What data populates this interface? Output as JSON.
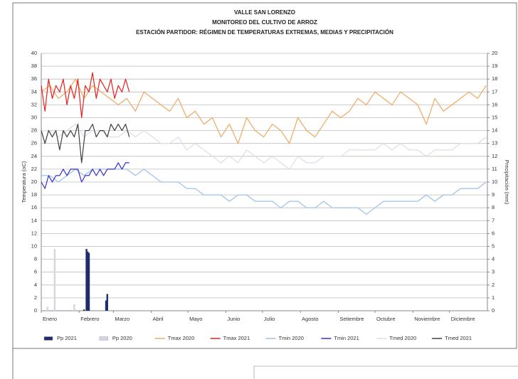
{
  "chart_data": {
    "type": "line",
    "title": [
      "VALLE SAN LORENZO",
      "MONITOREO DEL CULTIVO DE ARROZ",
      "ESTACIÓN PARTIDOR: RÉGIMEN DE TEMPERATURAS EXTREMAS, MEDIAS Y PRECIPITACIÓN"
    ],
    "ylabel": "Temperatura (oC)",
    "y2label": "Precipitación (mm)",
    "xlim": [
      1,
      366
    ],
    "xticks": [
      {
        "value": 1,
        "label": "Enero"
      },
      {
        "value": 32,
        "label": "Febrero"
      },
      {
        "value": 60,
        "label": "Marzo"
      },
      {
        "value": 91,
        "label": "Abril"
      },
      {
        "value": 121,
        "label": "Mayo"
      },
      {
        "value": 152,
        "label": "Junio"
      },
      {
        "value": 182,
        "label": "Julio"
      },
      {
        "value": 213,
        "label": "Agosto"
      },
      {
        "value": 244,
        "label": "Setiembre"
      },
      {
        "value": 274,
        "label": "Octubre"
      },
      {
        "value": 305,
        "label": "Noviembre"
      },
      {
        "value": 335,
        "label": "Diciembre"
      }
    ],
    "ylim": [
      0,
      40
    ],
    "yticks": [
      0,
      2,
      4,
      6,
      8,
      10,
      12,
      14,
      16,
      18,
      20,
      22,
      24,
      26,
      28,
      30,
      32,
      34,
      36,
      38,
      40
    ],
    "y2lim": [
      0,
      20
    ],
    "y2ticks": [
      0,
      1,
      2,
      3,
      4,
      5,
      6,
      7,
      8,
      9,
      10,
      11,
      12,
      13,
      14,
      15,
      16,
      17,
      18,
      19,
      20
    ],
    "grid": true,
    "legend": "bottom",
    "series": [
      {
        "name": "Pp 2021",
        "type": "bar",
        "axis": "y2",
        "color": "#1f2d6b",
        "x": [
          36,
          38,
          39,
          40,
          54,
          55
        ],
        "values": [
          0.1,
          4.8,
          4.6,
          4.5,
          0.8,
          1.3
        ]
      },
      {
        "name": "Pp 2020",
        "type": "bar",
        "axis": "y2",
        "color": "#d4d4e4",
        "x": [
          6,
          12,
          28
        ],
        "values": [
          0.3,
          4.8,
          0.5
        ]
      },
      {
        "name": "Tmax 2020",
        "type": "line",
        "color": "#f0a860",
        "x": [
          1,
          8,
          15,
          22,
          29,
          36,
          43,
          50,
          57,
          64,
          71,
          78,
          85,
          92,
          99,
          106,
          113,
          120,
          127,
          134,
          141,
          148,
          155,
          162,
          169,
          176,
          183,
          190,
          197,
          204,
          211,
          218,
          225,
          232,
          239,
          246,
          253,
          260,
          267,
          274,
          281,
          288,
          295,
          302,
          309,
          316,
          323,
          330,
          337,
          344,
          351,
          358,
          365
        ],
        "values": [
          34,
          35,
          33,
          34,
          36,
          33,
          35,
          34,
          33,
          32,
          33,
          31,
          34,
          33,
          32,
          31,
          33,
          30,
          31,
          29,
          30,
          27,
          29,
          26,
          30,
          28,
          27,
          29,
          28,
          26,
          30,
          28,
          27,
          29,
          31,
          30,
          31,
          33,
          32,
          34,
          33,
          32,
          34,
          33,
          32,
          29,
          33,
          31,
          32,
          33,
          34,
          33,
          35
        ]
      },
      {
        "name": "Tmax 2021",
        "type": "line",
        "color": "#e8201c",
        "x": [
          1,
          4,
          7,
          10,
          13,
          16,
          19,
          22,
          25,
          28,
          31,
          34,
          37,
          40,
          43,
          46,
          49,
          52,
          55,
          58,
          61,
          64,
          67,
          70,
          73
        ],
        "values": [
          35,
          31,
          36,
          33,
          35,
          34,
          36,
          32,
          35,
          33,
          36,
          30,
          35,
          34,
          37,
          33,
          36,
          35,
          34,
          36,
          33,
          35,
          34,
          36,
          34
        ]
      },
      {
        "name": "Tmin 2020",
        "type": "line",
        "color": "#9cc0e8",
        "x": [
          1,
          8,
          15,
          22,
          29,
          36,
          43,
          50,
          57,
          64,
          71,
          78,
          85,
          92,
          99,
          106,
          113,
          120,
          127,
          134,
          141,
          148,
          155,
          162,
          169,
          176,
          183,
          190,
          197,
          204,
          211,
          218,
          225,
          232,
          239,
          246,
          253,
          260,
          267,
          274,
          281,
          288,
          295,
          302,
          309,
          316,
          323,
          330,
          337,
          344,
          351,
          358,
          365
        ],
        "values": [
          21,
          21,
          20,
          21,
          22,
          21,
          22,
          22,
          22,
          22,
          22,
          21,
          22,
          21,
          20,
          20,
          20,
          19,
          19,
          18,
          18,
          18,
          17,
          18,
          18,
          17,
          17,
          17,
          16,
          17,
          17,
          16,
          16,
          17,
          16,
          16,
          16,
          16,
          15,
          16,
          17,
          17,
          17,
          17,
          17,
          18,
          17,
          18,
          18,
          19,
          19,
          19,
          20
        ]
      },
      {
        "name": "Tmin 2021",
        "type": "line",
        "color": "#3a2fd0",
        "x": [
          1,
          4,
          7,
          10,
          13,
          16,
          19,
          22,
          25,
          28,
          31,
          34,
          37,
          40,
          43,
          46,
          49,
          52,
          55,
          58,
          61,
          64,
          67,
          70,
          73
        ],
        "values": [
          20,
          19,
          21,
          20,
          21,
          21,
          22,
          21,
          22,
          22,
          22,
          20,
          21,
          21,
          22,
          21,
          22,
          21,
          22,
          22,
          22,
          23,
          22,
          23,
          23
        ]
      },
      {
        "name": "Tmed 2020",
        "type": "line",
        "color": "#dcdcea",
        "x": [
          1,
          8,
          15,
          22,
          29,
          36,
          43,
          50,
          57,
          64,
          71,
          78,
          85,
          92,
          99,
          106,
          113,
          120,
          127,
          134,
          141,
          148,
          155,
          162,
          169,
          176,
          183,
          190,
          197,
          204,
          211,
          218,
          225,
          232,
          239,
          246,
          253,
          260,
          267,
          274,
          281,
          288,
          295,
          302,
          309,
          316,
          323,
          330,
          337,
          344,
          351,
          358,
          365
        ],
        "values": [
          28,
          28,
          27,
          28,
          29,
          27,
          28,
          28,
          27,
          27,
          28,
          27,
          28,
          27,
          26,
          26,
          27,
          25,
          26,
          25,
          24,
          23,
          24,
          23,
          25,
          24,
          23,
          24,
          23,
          22,
          24,
          23,
          23,
          24,
          24,
          24,
          25,
          25,
          25,
          25,
          26,
          25,
          26,
          25,
          25,
          24,
          25,
          25,
          25,
          26,
          26,
          26,
          27
        ]
      },
      {
        "name": "Tmed 2021",
        "type": "line",
        "color": "#404040",
        "x": [
          1,
          4,
          7,
          10,
          13,
          16,
          19,
          22,
          25,
          28,
          31,
          34,
          37,
          40,
          43,
          46,
          49,
          52,
          55,
          58,
          61,
          64,
          67,
          70,
          73
        ],
        "values": [
          28,
          26,
          28,
          27,
          28,
          25,
          28,
          27,
          28,
          27,
          29,
          23,
          28,
          28,
          29,
          27,
          28,
          28,
          27,
          29,
          28,
          29,
          28,
          29,
          27
        ]
      }
    ]
  }
}
